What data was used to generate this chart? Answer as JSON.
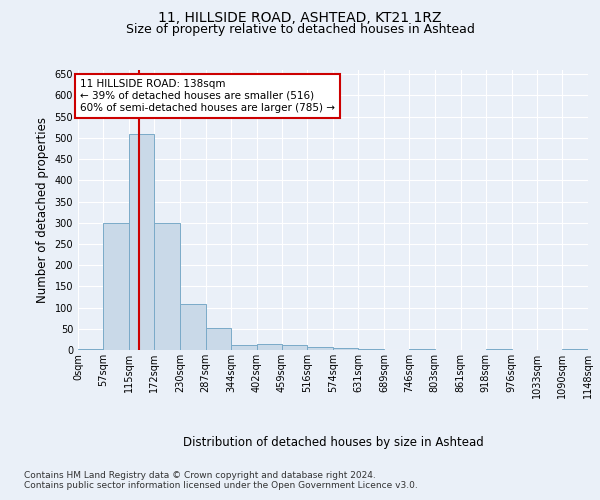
{
  "title1": "11, HILLSIDE ROAD, ASHTEAD, KT21 1RZ",
  "title2": "Size of property relative to detached houses in Ashtead",
  "xlabel": "Distribution of detached houses by size in Ashtead",
  "ylabel": "Number of detached properties",
  "bin_edges": [
    0,
    57,
    115,
    172,
    230,
    287,
    344,
    402,
    459,
    516,
    574,
    631,
    689,
    746,
    803,
    861,
    918,
    976,
    1033,
    1090,
    1148
  ],
  "bar_heights": [
    3,
    300,
    510,
    300,
    108,
    53,
    12,
    13,
    12,
    8,
    5,
    2,
    0,
    2,
    0,
    0,
    2,
    0,
    0,
    2
  ],
  "bar_color": "#c9d9e8",
  "bar_edge_color": "#7aaac8",
  "property_size": 138,
  "vline_color": "#cc0000",
  "annotation_line1": "11 HILLSIDE ROAD: 138sqm",
  "annotation_line2": "← 39% of detached houses are smaller (516)",
  "annotation_line3": "60% of semi-detached houses are larger (785) →",
  "annotation_box_color": "#ffffff",
  "annotation_box_edge_color": "#cc0000",
  "ylim": [
    0,
    660
  ],
  "yticks": [
    0,
    50,
    100,
    150,
    200,
    250,
    300,
    350,
    400,
    450,
    500,
    550,
    600,
    650
  ],
  "footer_text": "Contains HM Land Registry data © Crown copyright and database right 2024.\nContains public sector information licensed under the Open Government Licence v3.0.",
  "background_color": "#eaf0f8",
  "axes_background_color": "#eaf0f8",
  "grid_color": "#ffffff",
  "title1_fontsize": 10,
  "title2_fontsize": 9,
  "tick_fontsize": 7,
  "label_fontsize": 8.5,
  "footer_fontsize": 6.5,
  "annotation_fontsize": 7.5
}
